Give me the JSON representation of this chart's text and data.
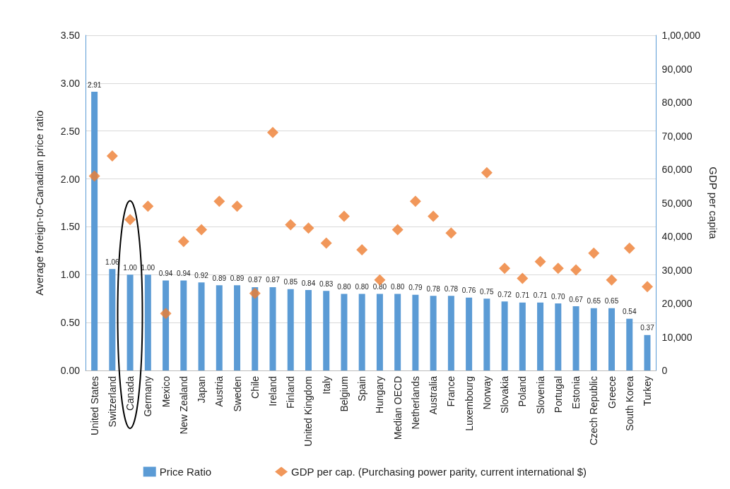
{
  "chart_data": {
    "type": "bar",
    "ylabel": "Average foreign-to-Canadian price ratio",
    "y2label": "GDP per capita",
    "categories": [
      "United States",
      "Switzerland",
      "Canada",
      "Germany",
      "Mexico",
      "New Zealand",
      "Japan",
      "Austria",
      "Sweden",
      "Chile",
      "Ireland",
      "Finland",
      "United Kingdom",
      "Italy",
      "Belgium",
      "Spain",
      "Hungary",
      "Median OECD",
      "Netherlands",
      "Australia",
      "France",
      "Luxembourg",
      "Norway",
      "Slovakia",
      "Poland",
      "Slovenia",
      "Portugal",
      "Estonia",
      "Czech Republic",
      "Greece",
      "South Korea",
      "Turkey"
    ],
    "series": [
      {
        "name": "Price Ratio",
        "color": "#5b9bd5",
        "values": [
          2.91,
          1.06,
          1.0,
          1.0,
          0.94,
          0.94,
          0.92,
          0.89,
          0.89,
          0.87,
          0.87,
          0.85,
          0.84,
          0.83,
          0.8,
          0.8,
          0.8,
          0.8,
          0.79,
          0.78,
          0.78,
          0.76,
          0.75,
          0.72,
          0.71,
          0.71,
          0.7,
          0.67,
          0.65,
          0.65,
          0.54,
          0.37
        ],
        "value_labels": [
          "2.91",
          "1.06",
          "1.00",
          "1.00",
          "0.94",
          "0.94",
          "0.92",
          "0.89",
          "0.89",
          "0.87",
          "0.87",
          "0.85",
          "0.84",
          "0.83",
          "0.80",
          "0.80",
          "0.80",
          "0.80",
          "0.79",
          "0.78",
          "0.78",
          "0.76",
          "0.75",
          "0.72",
          "0.71",
          "0.71",
          "0.70",
          "0.67",
          "0.65",
          "0.65",
          "0.54",
          "0.37"
        ]
      },
      {
        "name": "GDP per cap. (Purchasing power parity, current international $)",
        "type": "scatter",
        "axis": "y2",
        "marker": "diamond",
        "color": "#ed7d31",
        "values": [
          58000,
          64000,
          45000,
          49000,
          17000,
          38500,
          42000,
          50500,
          49000,
          23000,
          71000,
          43500,
          42500,
          38000,
          46000,
          36000,
          27000,
          42000,
          50500,
          46000,
          41000,
          null,
          59000,
          30500,
          27500,
          32500,
          30500,
          30000,
          35000,
          27000,
          36500,
          25000
        ]
      }
    ],
    "ylim": [
      0,
      3.5
    ],
    "yticks": [
      {
        "value": 0,
        "label": "0.00"
      },
      {
        "value": 0.5,
        "label": "0.50"
      },
      {
        "value": 1,
        "label": "1.00"
      },
      {
        "value": 1.5,
        "label": "1.50"
      },
      {
        "value": 2,
        "label": "2.00"
      },
      {
        "value": 2.5,
        "label": "2.50"
      },
      {
        "value": 3,
        "label": "3.00"
      },
      {
        "value": 3.5,
        "label": "3.50"
      }
    ],
    "y2lim": [
      0,
      100000
    ],
    "y2ticks": [
      0,
      {
        "value": 10000,
        "label": "10,000"
      },
      {
        "value": 20000,
        "label": "20,000"
      },
      {
        "value": 30000,
        "label": "30,000"
      },
      {
        "value": 40000,
        "label": "40,000"
      },
      {
        "value": 50000,
        "label": "50,000"
      },
      {
        "value": 60000,
        "label": "60,000"
      },
      {
        "value": 70000,
        "label": "70,000"
      },
      {
        "value": 80000,
        "label": "80,000"
      },
      {
        "value": 90000,
        "label": "90,000"
      },
      {
        "value": 100000,
        "label": "1,00,000"
      }
    ],
    "grid": "y",
    "legend": "bottom"
  }
}
